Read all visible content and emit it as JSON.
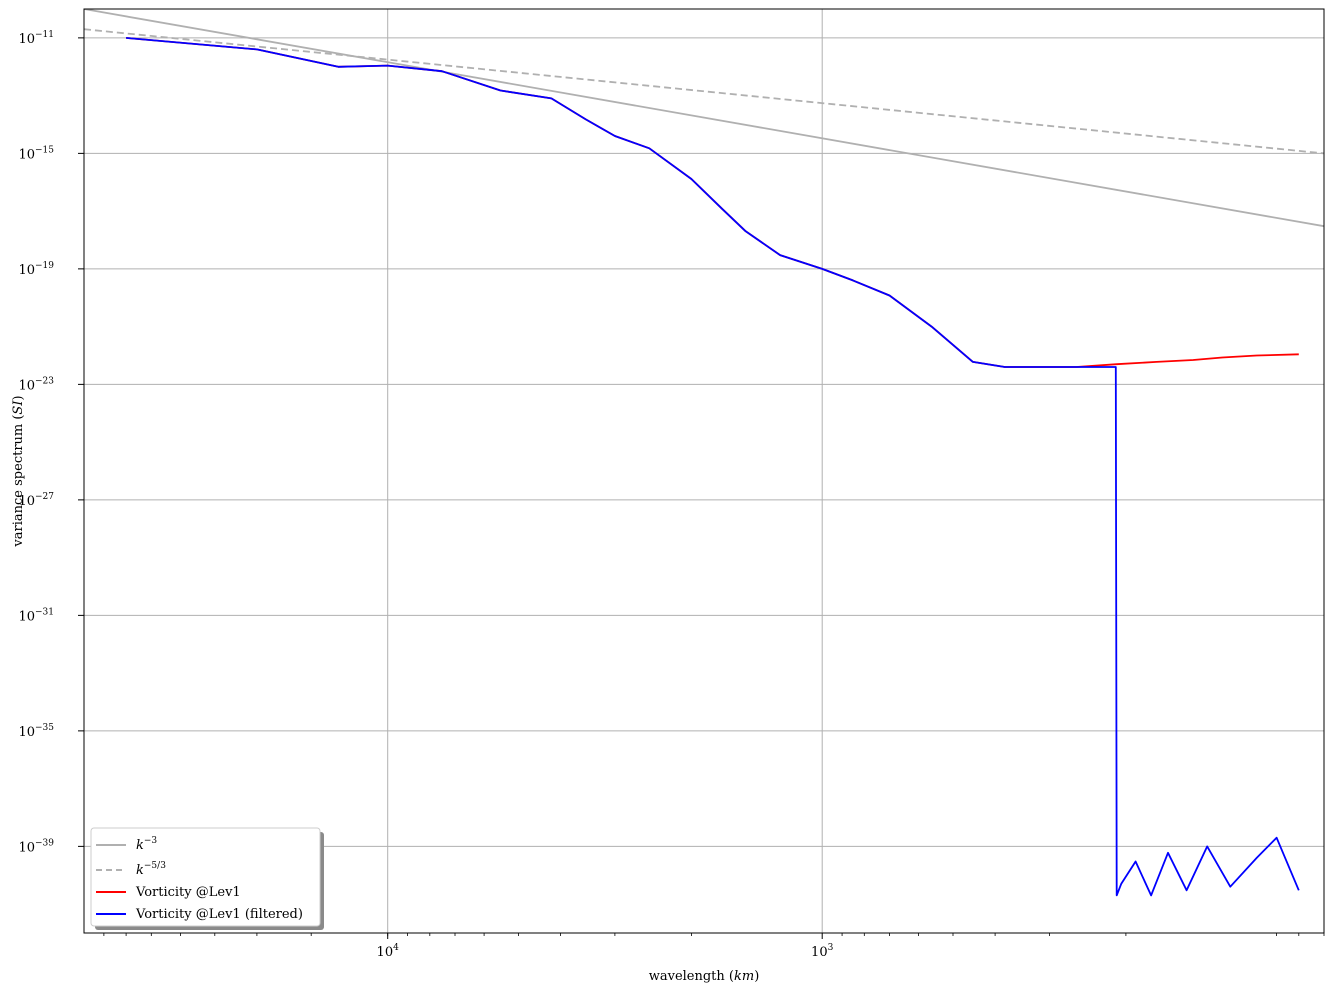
{
  "chart_data": {
    "type": "line",
    "title": "",
    "xlabel_main": "wavelength (",
    "xlabel_unit": "km",
    "xlabel_end": ")",
    "ylabel_main": "variance spectrum (",
    "ylabel_unit": "SI",
    "ylabel_end": ")",
    "x_scale": "log",
    "x_axis_inverted": true,
    "xlim": [
      50000,
      70
    ],
    "y_scale": "log",
    "ylim": [
      1e-42,
      1e-10
    ],
    "grid": true,
    "legend_position": "lower-left",
    "x_ticks": [
      {
        "value": 10000,
        "base": "10",
        "exp": "4"
      },
      {
        "value": 1000,
        "base": "10",
        "exp": "3"
      }
    ],
    "y_ticks": [
      {
        "value": 1e-11,
        "base": "10",
        "exp": "−11"
      },
      {
        "value": 1e-15,
        "base": "10",
        "exp": "−15"
      },
      {
        "value": 1e-19,
        "base": "10",
        "exp": "−19"
      },
      {
        "value": 1e-23,
        "base": "10",
        "exp": "−23"
      },
      {
        "value": 1e-27,
        "base": "10",
        "exp": "−27"
      },
      {
        "value": 1e-31,
        "base": "10",
        "exp": "−31"
      },
      {
        "value": 1e-35,
        "base": "10",
        "exp": "−35"
      },
      {
        "value": 1e-39,
        "base": "10",
        "exp": "−39"
      }
    ],
    "series": [
      {
        "name": "k",
        "name_sup": "−3",
        "color": "#b0b0b0",
        "style": "solid",
        "x": [
          50000,
          70
        ],
        "y": [
          1e-10,
          3e-18
        ]
      },
      {
        "name": "k",
        "name_sup": "−5/3",
        "color": "#b0b0b0",
        "style": "dashed",
        "x": [
          50000,
          70
        ],
        "y": [
          2e-11,
          1e-15
        ]
      },
      {
        "name": "Vorticity @Lev1",
        "color": "#ff0000",
        "style": "solid",
        "x": [
          40000,
          20000,
          13000,
          10000,
          7500,
          5500,
          4200,
          3500,
          3000,
          2500,
          2000,
          1700,
          1500,
          1250,
          1000,
          850,
          700,
          560,
          450,
          380,
          310,
          260,
          210,
          170,
          140,
          120,
          100,
          80
        ],
        "y": [
          1e-11,
          4e-12,
          1e-12,
          1.1e-12,
          7e-13,
          1.5e-13,
          8e-14,
          1.5e-14,
          4e-15,
          1.5e-15,
          1.3e-16,
          1.2e-17,
          2e-18,
          3e-19,
          1e-19,
          4e-20,
          1.2e-20,
          1e-21,
          6e-23,
          4e-23,
          4e-23,
          4e-23,
          5e-23,
          6e-23,
          7e-23,
          8.5e-23,
          1e-22,
          1.1e-22
        ]
      },
      {
        "name": "Vorticity @Lev1 (filtered)",
        "color": "#0000ff",
        "style": "solid",
        "x": [
          40000,
          20000,
          13000,
          10000,
          7500,
          5500,
          4200,
          3500,
          3000,
          2500,
          2000,
          1700,
          1500,
          1250,
          1000,
          850,
          700,
          560,
          450,
          380,
          310,
          260,
          211,
          210,
          205,
          190,
          175,
          160,
          145,
          130,
          115,
          100,
          90,
          80
        ],
        "y": [
          1e-11,
          4e-12,
          1e-12,
          1.1e-12,
          7e-13,
          1.5e-13,
          8e-14,
          1.5e-14,
          4e-15,
          1.5e-15,
          1.3e-16,
          1.2e-17,
          2e-18,
          3e-19,
          1e-19,
          4e-20,
          1.2e-20,
          1e-21,
          6e-23,
          4e-23,
          4e-23,
          4e-23,
          4e-23,
          2e-41,
          5e-41,
          3e-40,
          2e-41,
          6e-40,
          3e-41,
          1e-39,
          4e-41,
          4e-40,
          2e-39,
          3e-41
        ]
      }
    ]
  }
}
